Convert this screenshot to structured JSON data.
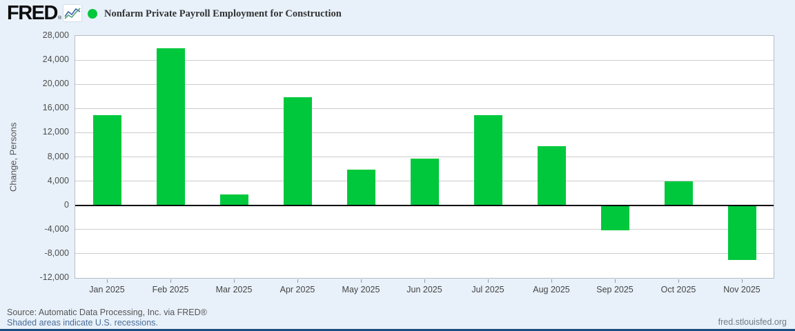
{
  "header": {
    "logo_text": "FRED",
    "registered_mark": "®",
    "legend_label": "Nonfarm Private Payroll Employment for Construction",
    "legend_color": "#00c83c"
  },
  "chart_data": {
    "type": "bar",
    "title": "Nonfarm Private Payroll Employment for Construction",
    "xlabel": "",
    "ylabel": "Change, Persons",
    "categories": [
      "Jan 2025",
      "Feb 2025",
      "Mar 2025",
      "Apr 2025",
      "May 2025",
      "Jun 2025",
      "Jul 2025",
      "Aug 2025",
      "Sep 2025",
      "Oct 2025",
      "Nov 2025"
    ],
    "values": [
      14900,
      25900,
      1800,
      17900,
      5900,
      7700,
      14900,
      9800,
      -4100,
      3900,
      -9000
    ],
    "ylim": [
      -12000,
      28000
    ],
    "ytick_step": 4000,
    "ytick_labels": [
      "28,000",
      "24,000",
      "20,000",
      "16,000",
      "12,000",
      "8,000",
      "4,000",
      "0",
      "-4,000",
      "-8,000",
      "-12,000"
    ],
    "grid": true,
    "legend_position": "top-left",
    "bar_color": "#00c83c",
    "zero_line_color": "#000000"
  },
  "footer": {
    "source_text": "Source: Automatic Data Processing, Inc. via FRED®",
    "recessions_link": "Shaded areas indicate U.S. recessions.",
    "site_link": "fred.stlouisfed.org"
  },
  "colors": {
    "background": "#e8f1fa",
    "plot_background": "#ffffff",
    "gridline": "#cccccc",
    "axis_text": "#444444",
    "link_blue": "#4a6d97",
    "bottom_strip": "#1d4d7c"
  }
}
